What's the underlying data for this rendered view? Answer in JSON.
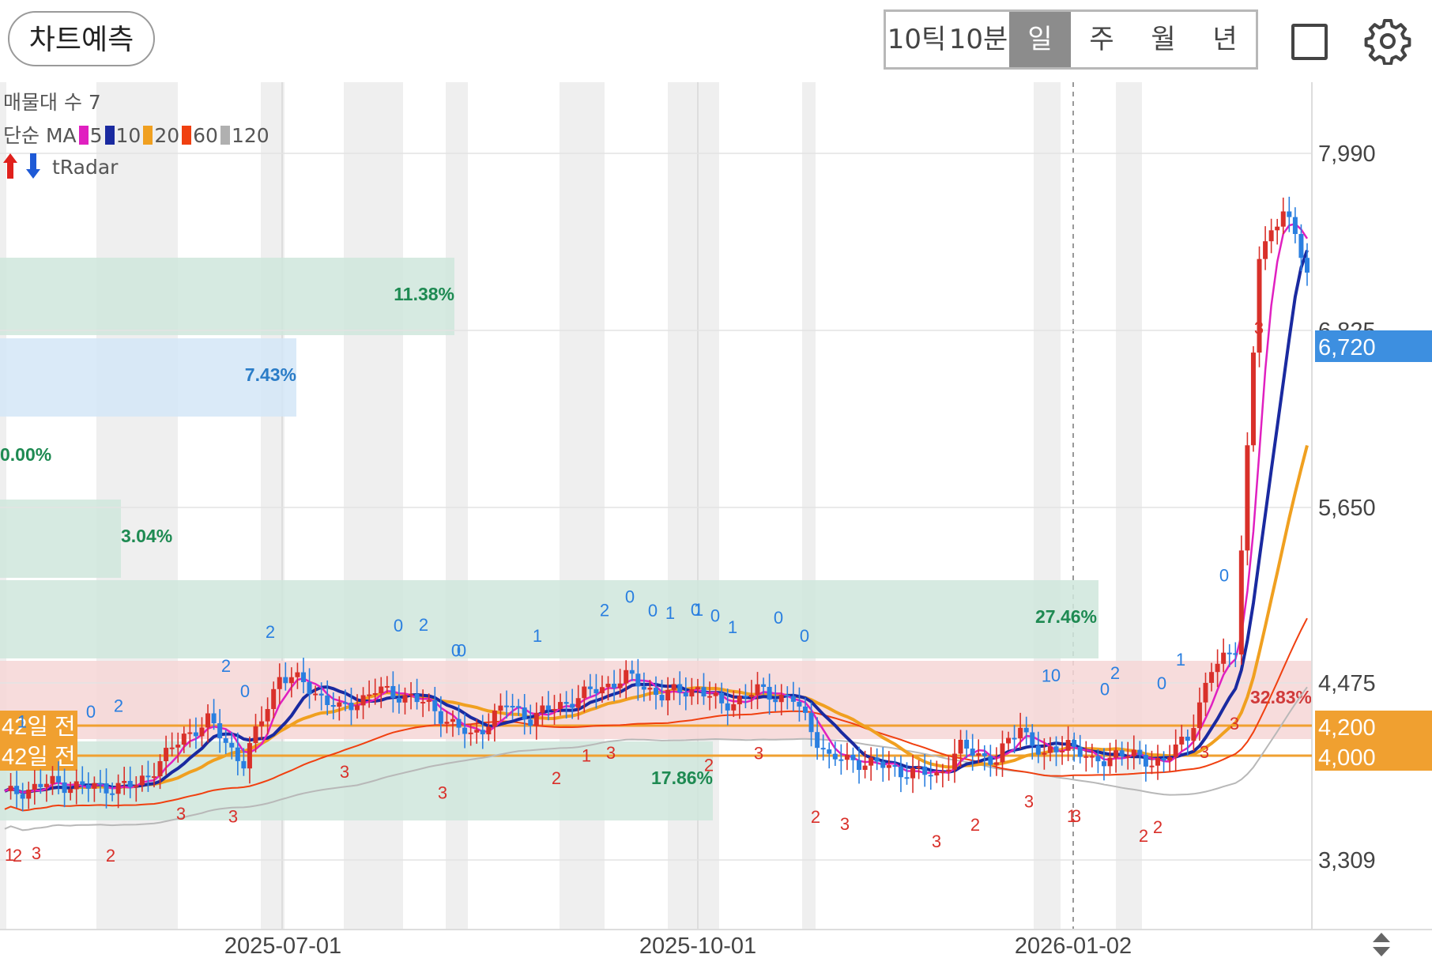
{
  "header": {
    "predict_button": "차트예측",
    "periods": [
      "10틱",
      "10분",
      "일",
      "주",
      "월",
      "년"
    ],
    "active_period": "일"
  },
  "legend": {
    "volume_profile": "매물대 수 7",
    "ma_prefix": "단순 MA",
    "ma_items": [
      {
        "label": "5",
        "color": "#e020c0"
      },
      {
        "label": "10",
        "color": "#1a2aa0"
      },
      {
        "label": "20",
        "color": "#f0a020"
      },
      {
        "label": "60",
        "color": "#f04010"
      },
      {
        "label": "120",
        "color": "#b0b0b0"
      }
    ],
    "radar": "tRadar"
  },
  "zones": [
    {
      "label": "11.38%",
      "color": "#cfe6dc",
      "label_color": "#1e8a52"
    },
    {
      "label": "7.43%",
      "color": "#d4e6f7",
      "label_color": "#2a7cc7"
    },
    {
      "label": "0.00%",
      "color": "#cfe6dc",
      "label_color": "#1e8a52"
    },
    {
      "label": "3.04%",
      "color": "#cfe6dc",
      "label_color": "#1e8a52"
    },
    {
      "label": "27.46%",
      "color": "#cfe6dc",
      "label_color": "#1e8a52"
    },
    {
      "label": "32.83%",
      "color": "#f6d6d6",
      "label_color": "#d03a3a"
    },
    {
      "label": "17.86%",
      "color": "#cfe6dc",
      "label_color": "#1e8a52"
    }
  ],
  "price_axis": {
    "ticks": [
      "7,990",
      "6,825",
      "5,650",
      "4,475",
      "3,309"
    ],
    "current_price": "6,720",
    "current_color": "#3d8fe0"
  },
  "reference_lines": [
    {
      "label": "42일 전",
      "price": "4,200",
      "color": "#f0a030"
    },
    {
      "label": "42일 전",
      "price": "4,000",
      "color": "#f0a030"
    }
  ],
  "date_axis": [
    "2025-07-01",
    "2025-10-01",
    "2026-01-02"
  ],
  "radar_marks": {
    "top_labels": [
      "1",
      "0",
      "2",
      "2",
      "0",
      "2",
      "0",
      "2",
      "0",
      "0",
      "1",
      "2",
      "0",
      "0",
      "1",
      "0",
      "1",
      "0",
      "1",
      "0",
      "0",
      "1",
      "0",
      "0",
      "2",
      "0",
      "1",
      "0"
    ],
    "bottom_labels": [
      "1",
      "2",
      "3",
      "2",
      "3",
      "3",
      "3",
      "3",
      "2",
      "1",
      "3",
      "2",
      "3",
      "2",
      "3",
      "3",
      "2",
      "3",
      "1",
      "3",
      "2",
      "2",
      "3",
      "3",
      "3"
    ]
  }
}
